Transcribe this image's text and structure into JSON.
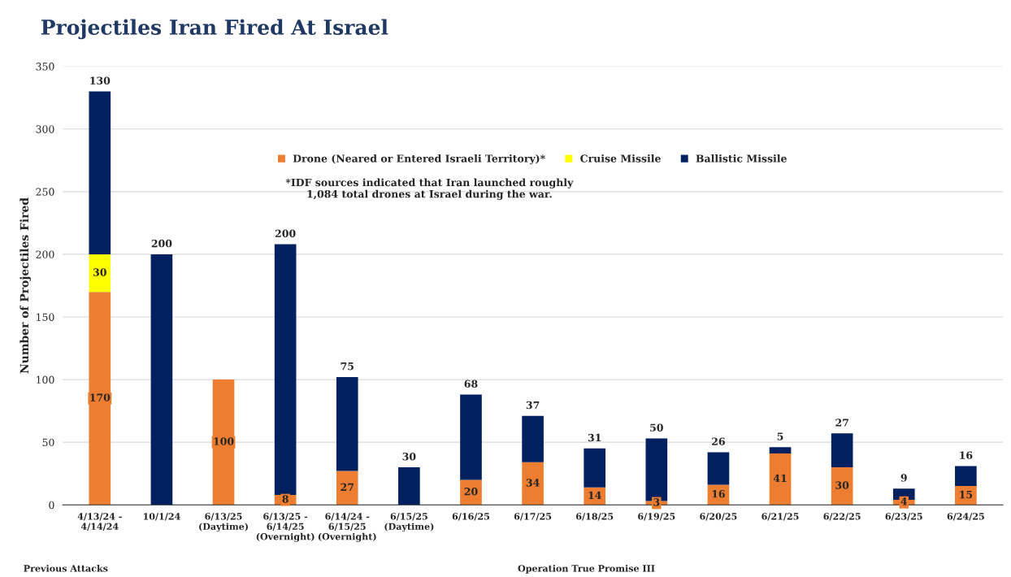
{
  "chart_data": {
    "type": "bar",
    "title": "Projectiles Iran Fired At Israel",
    "ylabel": "Number of Projectiles Fired",
    "categories": [
      "4/13/24 -\n4/14/24",
      "10/1/24",
      "6/13/25\n(Daytime)",
      "6/13/25 -\n6/14/25\n(Overnight)",
      "6/14/24 -\n6/15/25\n(Overnight)",
      "6/15/25\n(Daytime)",
      "6/16/25",
      "6/17/25",
      "6/18/25",
      "6/19/25",
      "6/20/25",
      "6/21/25",
      "6/22/25",
      "6/23/25",
      "6/24/25"
    ],
    "series": [
      {
        "name": "Drone (Neared or Entered Israeli Territory)*",
        "color": "#ed7d31",
        "values": [
          170,
          null,
          100,
          8,
          27,
          null,
          20,
          34,
          14,
          3,
          16,
          41,
          30,
          4,
          15
        ]
      },
      {
        "name": "Cruise Missile",
        "color": "#ffff00",
        "values": [
          30,
          null,
          null,
          null,
          null,
          null,
          null,
          null,
          null,
          null,
          null,
          null,
          null,
          null,
          null
        ]
      },
      {
        "name": "Ballistic Missile",
        "color": "#002060",
        "values": [
          130,
          200,
          null,
          200,
          75,
          30,
          68,
          37,
          31,
          50,
          26,
          5,
          27,
          9,
          16
        ]
      }
    ],
    "stacked": true,
    "data_labels": true,
    "ylim": [
      0,
      350
    ],
    "yticks": [
      0,
      50,
      100,
      150,
      200,
      250,
      300,
      350
    ],
    "grid": "y",
    "legend": "top",
    "annotations": [
      "*IDF sources indicated that Iran launched roughly\n1,084 total drones at Israel during the war.",
      "Previous Attacks",
      "Operation True Promise III"
    ]
  }
}
